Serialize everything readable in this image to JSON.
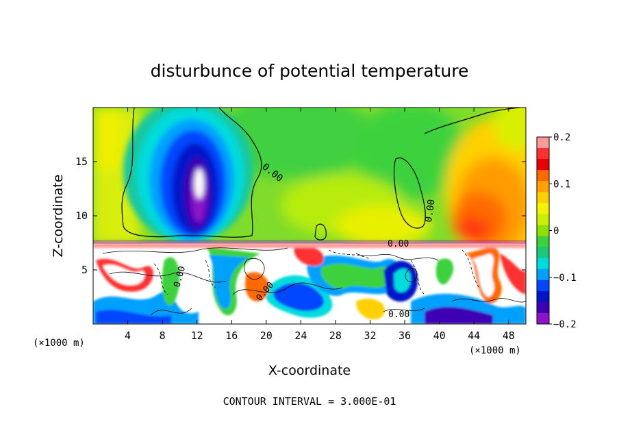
{
  "chart_data": {
    "type": "heatmap",
    "title": "disturbunce of potential temperature",
    "xlabel": "X-coordinate",
    "ylabel": "Z-coordinate",
    "x_unit_left": "(×1000 m)",
    "x_unit_right": "(×1000 m)",
    "xlim": [
      0,
      50
    ],
    "ylim": [
      0,
      20
    ],
    "x_ticks": [
      4,
      8,
      12,
      16,
      20,
      24,
      28,
      32,
      36,
      40,
      44,
      48
    ],
    "y_ticks": [
      5,
      10,
      15
    ],
    "colorbar": {
      "range": [
        -0.2,
        0.2
      ],
      "tick_values": [
        0.2,
        0.1,
        0,
        -0.1,
        -0.2
      ],
      "tick_labels": [
        "0.2",
        "0.1",
        "0",
        "−0.1",
        "−0.2"
      ],
      "colors": [
        "#ff9a9a",
        "#ff3030",
        "#e80000",
        "#ff6a00",
        "#ffa200",
        "#ffd000",
        "#f4f400",
        "#c8f000",
        "#8ee000",
        "#3cd23c",
        "#19c878",
        "#00dcdc",
        "#00a0ff",
        "#0046ff",
        "#0014c8",
        "#3c00b4",
        "#8c14c8"
      ]
    },
    "contour_interval_text": "CONTOUR INTERVAL = 3.000E-01",
    "contour_labels": [
      "0.00",
      "0.00",
      "0.00",
      "0.00",
      "0.00",
      "0.00"
    ]
  }
}
